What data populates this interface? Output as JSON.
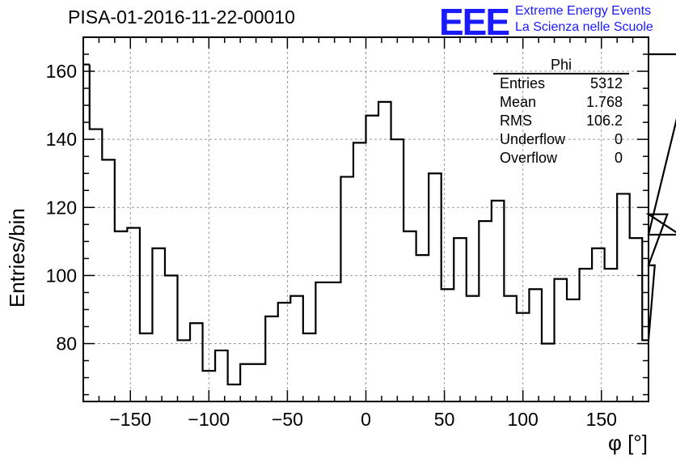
{
  "chart_data": {
    "type": "histogram",
    "title": "PISA-01-2016-11-22-00010",
    "xlabel": "φ [°]",
    "ylabel": "Entries/bin",
    "xlim": [
      -180,
      180
    ],
    "ylim": [
      63,
      170
    ],
    "grid": true,
    "bin_width": 8,
    "x_start": -176,
    "x_ticks": [
      -150,
      -100,
      -50,
      0,
      50,
      100,
      150
    ],
    "x_tick_labels": [
      "−150",
      "−100",
      "−50",
      "0",
      "50",
      "100",
      "150"
    ],
    "y_ticks": [
      80,
      100,
      120,
      140,
      160
    ],
    "y_tick_labels": [
      "80",
      "100",
      "120",
      "140",
      "160"
    ],
    "values": [
      143,
      134,
      113,
      114,
      83,
      108,
      100,
      81,
      86,
      72,
      78,
      68,
      74,
      74,
      88,
      92,
      94,
      83,
      98,
      98,
      129,
      139,
      147,
      151,
      140,
      113,
      106,
      130,
      96,
      111,
      94,
      116,
      122,
      94,
      89,
      96,
      80,
      99,
      93,
      102,
      108,
      102,
      124,
      111,
      81,
      103,
      118,
      112,
      165
    ],
    "first_bin_left_value": 162,
    "stats": {
      "name": "Phi",
      "rows": [
        {
          "label": "Entries",
          "value": "5312"
        },
        {
          "label": "Mean",
          "value": "1.768"
        },
        {
          "label": "RMS",
          "value": "106.2"
        },
        {
          "label": "Underflow",
          "value": "0"
        },
        {
          "label": "Overflow",
          "value": "0"
        }
      ]
    }
  },
  "logo": {
    "mark": "EEE",
    "line1": "Extreme Energy Events",
    "line2": "La Scienza nelle Scuole"
  },
  "colors": {
    "line": "#000000",
    "grid": "#999999",
    "logo": "#1a1aff"
  }
}
